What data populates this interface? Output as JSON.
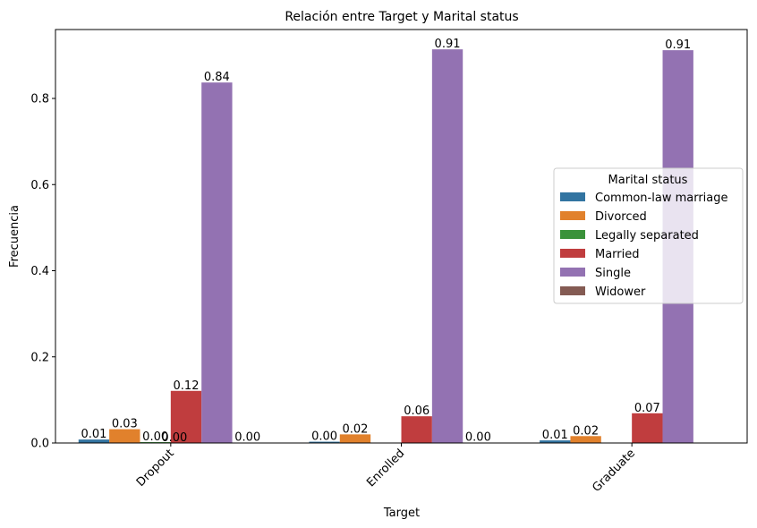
{
  "chart_data": {
    "type": "bar",
    "title": "Relación entre Target y Marital status",
    "xlabel": "Target",
    "ylabel": "Frecuencia",
    "categories": [
      "Dropout",
      "Enrolled",
      "Graduate"
    ],
    "ylim": [
      0,
      0.96
    ],
    "yticks": [
      0.0,
      0.2,
      0.4,
      0.6,
      0.8
    ],
    "ytick_labels": [
      "0.0",
      "0.2",
      "0.4",
      "0.6",
      "0.8"
    ],
    "grid": false,
    "legend": {
      "title": "Marital status",
      "placement": "center-right"
    },
    "series": [
      {
        "name": "Common-law marriage",
        "color": "#3274a1",
        "values": [
          0.008,
          0.003,
          0.006
        ],
        "labels": [
          "0.01",
          "0.00",
          "0.01"
        ]
      },
      {
        "name": "Divorced",
        "color": "#e1812c",
        "values": [
          0.032,
          0.02,
          0.016
        ],
        "labels": [
          "0.03",
          "0.02",
          "0.02"
        ]
      },
      {
        "name": "Legally separated",
        "color": "#3a923a",
        "values": [
          0.002,
          null,
          null
        ],
        "labels": [
          "0.00",
          null,
          null
        ]
      },
      {
        "name": "Married",
        "color": "#c03d3e",
        "values": [
          0.121,
          0.062,
          0.069
        ],
        "labels": [
          "0.12",
          "0.06",
          "0.07"
        ]
      },
      {
        "name": "Single",
        "color": "#9372b2",
        "values": [
          0.837,
          0.914,
          0.912
        ],
        "labels": [
          "0.84",
          "0.91",
          "0.91"
        ]
      },
      {
        "name": "Widower",
        "color": "#845b53",
        "values": [
          0.001,
          0.001,
          null
        ],
        "labels": [
          "0.00",
          "0.00",
          null
        ]
      }
    ],
    "overlap_labels": [
      "0.00"
    ]
  }
}
